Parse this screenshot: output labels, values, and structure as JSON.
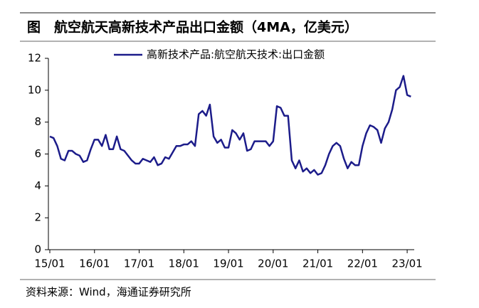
{
  "chart_data": {
    "type": "line",
    "title": "图　航空航天高新技术产品出口金额（4MA，亿美元）",
    "source": "资料来源：Wind，海通证券研究所",
    "categories": [
      "15/01",
      null,
      null,
      null,
      null,
      null,
      null,
      null,
      null,
      null,
      null,
      null,
      "16/01",
      null,
      null,
      null,
      null,
      null,
      null,
      null,
      null,
      null,
      null,
      null,
      "17/01",
      null,
      null,
      null,
      null,
      null,
      null,
      null,
      null,
      null,
      null,
      null,
      "18/01",
      null,
      null,
      null,
      null,
      null,
      null,
      null,
      null,
      null,
      null,
      null,
      "19/01",
      null,
      null,
      null,
      null,
      null,
      null,
      null,
      null,
      null,
      null,
      null,
      "20/01",
      null,
      null,
      null,
      null,
      null,
      null,
      null,
      null,
      null,
      null,
      null,
      "21/01",
      null,
      null,
      null,
      null,
      null,
      null,
      null,
      null,
      null,
      null,
      null,
      "22/01",
      null,
      null,
      null,
      null,
      null,
      null,
      null,
      null,
      null,
      null,
      null,
      "23/01",
      null
    ],
    "series": [
      {
        "name": "高新技术产品:航空航天技术:出口金额",
        "color": "#1c1c8a",
        "values": [
          7.1,
          7.0,
          6.5,
          5.7,
          5.6,
          6.2,
          6.2,
          6.0,
          5.9,
          5.5,
          5.6,
          6.3,
          6.9,
          6.9,
          6.5,
          7.2,
          6.3,
          6.3,
          7.1,
          6.3,
          6.2,
          5.9,
          5.6,
          5.4,
          5.4,
          5.7,
          5.6,
          5.5,
          5.8,
          5.3,
          5.4,
          5.8,
          5.7,
          6.1,
          6.5,
          6.5,
          6.6,
          6.6,
          6.8,
          6.5,
          8.5,
          8.7,
          8.4,
          9.1,
          7.1,
          6.7,
          6.9,
          6.4,
          6.4,
          7.5,
          7.3,
          6.9,
          7.3,
          6.2,
          6.3,
          6.8,
          6.8,
          6.8,
          6.8,
          6.5,
          6.8,
          9.0,
          8.9,
          8.4,
          8.4,
          5.6,
          5.1,
          5.6,
          4.9,
          5.1,
          4.8,
          5.0,
          4.7,
          4.8,
          5.3,
          6.0,
          6.5,
          6.7,
          6.5,
          5.7,
          5.1,
          5.5,
          5.3,
          5.3,
          6.5,
          7.3,
          7.8,
          7.7,
          7.5,
          6.7,
          7.6,
          8.0,
          8.8,
          10.0,
          10.2,
          10.9,
          9.7,
          9.6
        ]
      }
    ],
    "ylim": [
      0,
      12
    ],
    "yticks": [
      0,
      2,
      4,
      6,
      8,
      10,
      12
    ],
    "grid": false
  }
}
